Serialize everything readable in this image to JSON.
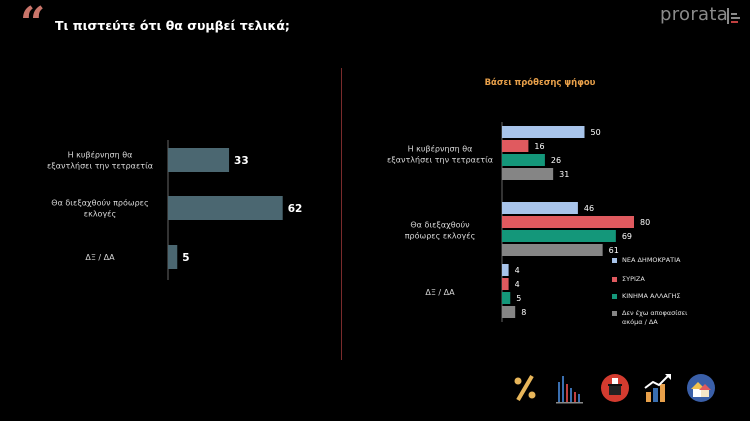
{
  "header": {
    "question": "Τι πιστεύτε ότι θα συμβεί τελικά;",
    "quote_mark": "“",
    "logo": "prorata"
  },
  "chart_data": [
    {
      "type": "bar",
      "orientation": "horizontal",
      "categories": [
        [
          "Η κυβέρνηση θα",
          "εξαντλήσει την τετραετία"
        ],
        [
          "Θα διεξαχθούν πρόωρες",
          "εκλογές"
        ],
        [
          "ΔΞ / ΔΑ"
        ]
      ],
      "values": [
        33,
        62,
        5
      ],
      "color": "#4b6771",
      "xlim": [
        0,
        100
      ]
    },
    {
      "type": "bar",
      "orientation": "horizontal",
      "title": "Βάσει πρόθεσης ψήφου",
      "categories": [
        [
          "Η κυβέρνηση θα",
          "εξαντλήσει την τετραετία"
        ],
        [
          "Θα διεξαχθούν",
          "πρόωρες εκλογές"
        ],
        [
          "ΔΞ / ΔΑ"
        ]
      ],
      "series": [
        {
          "name": "ΝΕΑ ΔΗΜΟΚΡΑΤΙΑ",
          "values": [
            50,
            46,
            4
          ],
          "color": "#a8c4ea"
        },
        {
          "name": "ΣΥΡΙΖΑ",
          "values": [
            16,
            80,
            4
          ],
          "color": "#e05a5f"
        },
        {
          "name": "ΚΙΝΗΜΑ ΑΛΛΑΓΗΣ",
          "values": [
            26,
            69,
            5
          ],
          "color": "#14977a"
        },
        {
          "name": [
            "Δεν έχω αποφασίσει",
            "ακόμα / ΔΑ"
          ],
          "values": [
            31,
            61,
            8
          ],
          "color": "#858585"
        }
      ],
      "xlim": [
        0,
        100
      ]
    }
  ],
  "footer_icons": [
    "percent-icon",
    "bar-chart-icon",
    "ballot-box-icon",
    "growth-chart-icon",
    "houses-icon"
  ]
}
